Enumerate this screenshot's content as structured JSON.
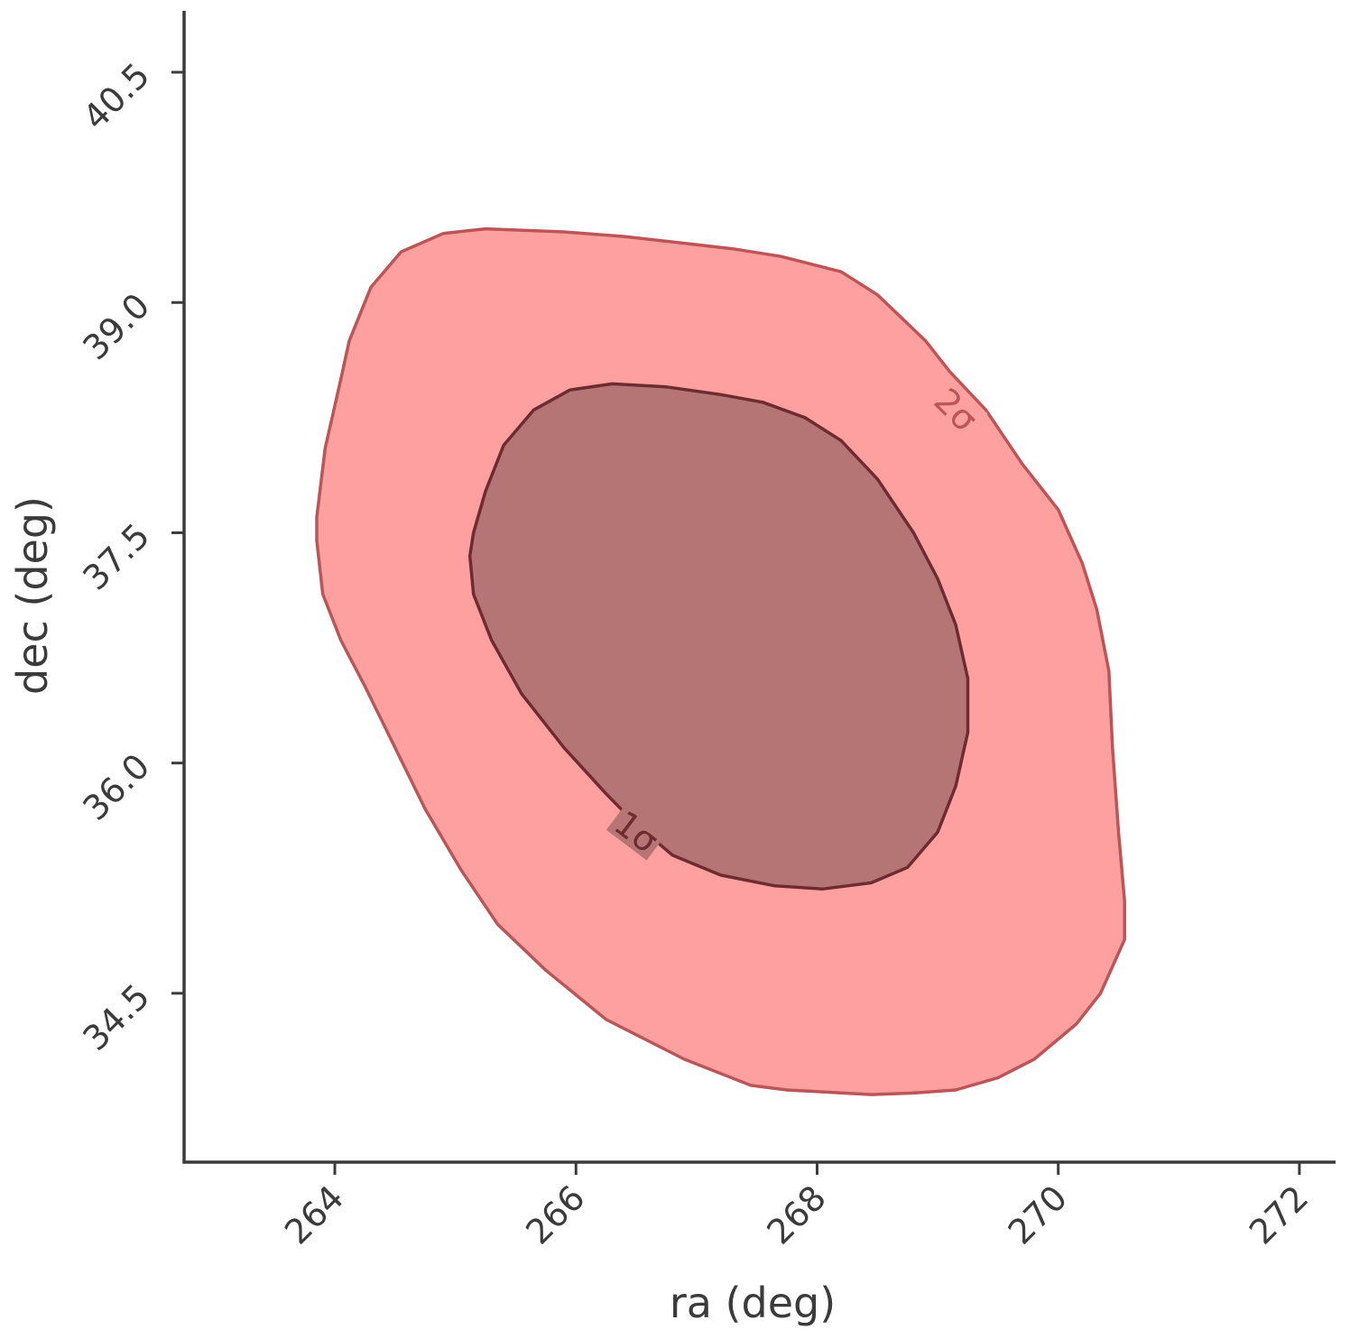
{
  "chart_data": {
    "type": "contour",
    "xlabel": "ra (deg)",
    "ylabel": "dec (deg)",
    "xlim": [
      262.75,
      272.3
    ],
    "ylim": [
      33.4,
      40.9
    ],
    "xticks": [
      264,
      266,
      268,
      270,
      272
    ],
    "xtick_labels": [
      "264",
      "266",
      "268",
      "270",
      "272"
    ],
    "yticks": [
      34.5,
      36.0,
      37.5,
      39.0,
      40.5
    ],
    "ytick_labels": [
      "34.5",
      "36.0",
      "37.5",
      "39.0",
      "40.5"
    ],
    "grid": false,
    "contours": [
      {
        "label": "2σ",
        "fill": "#ffa0a0",
        "stroke": "#bb5558",
        "label_color": "#bb5558",
        "label_at": [
          269.15,
          38.3
        ],
        "points": [
          [
            265.25,
            39.48
          ],
          [
            264.9,
            39.45
          ],
          [
            264.55,
            39.33
          ],
          [
            264.3,
            39.1
          ],
          [
            264.12,
            38.75
          ],
          [
            264.05,
            38.5
          ],
          [
            263.92,
            38.05
          ],
          [
            263.85,
            37.6
          ],
          [
            263.85,
            37.45
          ],
          [
            263.9,
            37.1
          ],
          [
            264.05,
            36.8
          ],
          [
            264.25,
            36.5
          ],
          [
            264.5,
            36.1
          ],
          [
            264.75,
            35.7
          ],
          [
            265.05,
            35.3
          ],
          [
            265.35,
            34.95
          ],
          [
            265.75,
            34.65
          ],
          [
            266.25,
            34.33
          ],
          [
            266.9,
            34.07
          ],
          [
            267.45,
            33.9
          ],
          [
            267.75,
            33.87
          ],
          [
            268.45,
            33.84
          ],
          [
            268.8,
            33.85
          ],
          [
            269.15,
            33.87
          ],
          [
            269.5,
            33.95
          ],
          [
            269.8,
            34.07
          ],
          [
            270.15,
            34.3
          ],
          [
            270.35,
            34.5
          ],
          [
            270.55,
            34.85
          ],
          [
            270.55,
            35.1
          ],
          [
            270.5,
            35.55
          ],
          [
            270.45,
            36.1
          ],
          [
            270.42,
            36.6
          ],
          [
            270.32,
            37.0
          ],
          [
            270.2,
            37.3
          ],
          [
            270.0,
            37.65
          ],
          [
            269.7,
            37.95
          ],
          [
            269.4,
            38.3
          ],
          [
            269.1,
            38.55
          ],
          [
            268.9,
            38.75
          ],
          [
            268.5,
            39.05
          ],
          [
            268.2,
            39.2
          ],
          [
            267.7,
            39.3
          ],
          [
            267.3,
            39.35
          ],
          [
            266.4,
            39.43
          ],
          [
            265.9,
            39.46
          ]
        ]
      },
      {
        "label": "1σ",
        "fill": "#b57575",
        "stroke": "#6e2c30",
        "label_color": "#6e2c30",
        "label_at": [
          266.5,
          35.55
        ],
        "points": [
          [
            266.3,
            38.47
          ],
          [
            265.95,
            38.43
          ],
          [
            265.65,
            38.3
          ],
          [
            265.4,
            38.07
          ],
          [
            265.25,
            37.77
          ],
          [
            265.15,
            37.5
          ],
          [
            265.12,
            37.35
          ],
          [
            265.15,
            37.1
          ],
          [
            265.3,
            36.8
          ],
          [
            265.55,
            36.45
          ],
          [
            265.9,
            36.1
          ],
          [
            266.25,
            35.8
          ],
          [
            266.5,
            35.6
          ],
          [
            266.8,
            35.4
          ],
          [
            267.2,
            35.27
          ],
          [
            267.65,
            35.2
          ],
          [
            268.05,
            35.18
          ],
          [
            268.45,
            35.22
          ],
          [
            268.75,
            35.32
          ],
          [
            269.0,
            35.55
          ],
          [
            269.15,
            35.85
          ],
          [
            269.25,
            36.2
          ],
          [
            269.25,
            36.55
          ],
          [
            269.15,
            36.9
          ],
          [
            269.0,
            37.2
          ],
          [
            268.8,
            37.5
          ],
          [
            268.5,
            37.85
          ],
          [
            268.2,
            38.1
          ],
          [
            267.9,
            38.25
          ],
          [
            267.55,
            38.35
          ],
          [
            267.2,
            38.4
          ],
          [
            266.75,
            38.45
          ]
        ]
      }
    ]
  }
}
